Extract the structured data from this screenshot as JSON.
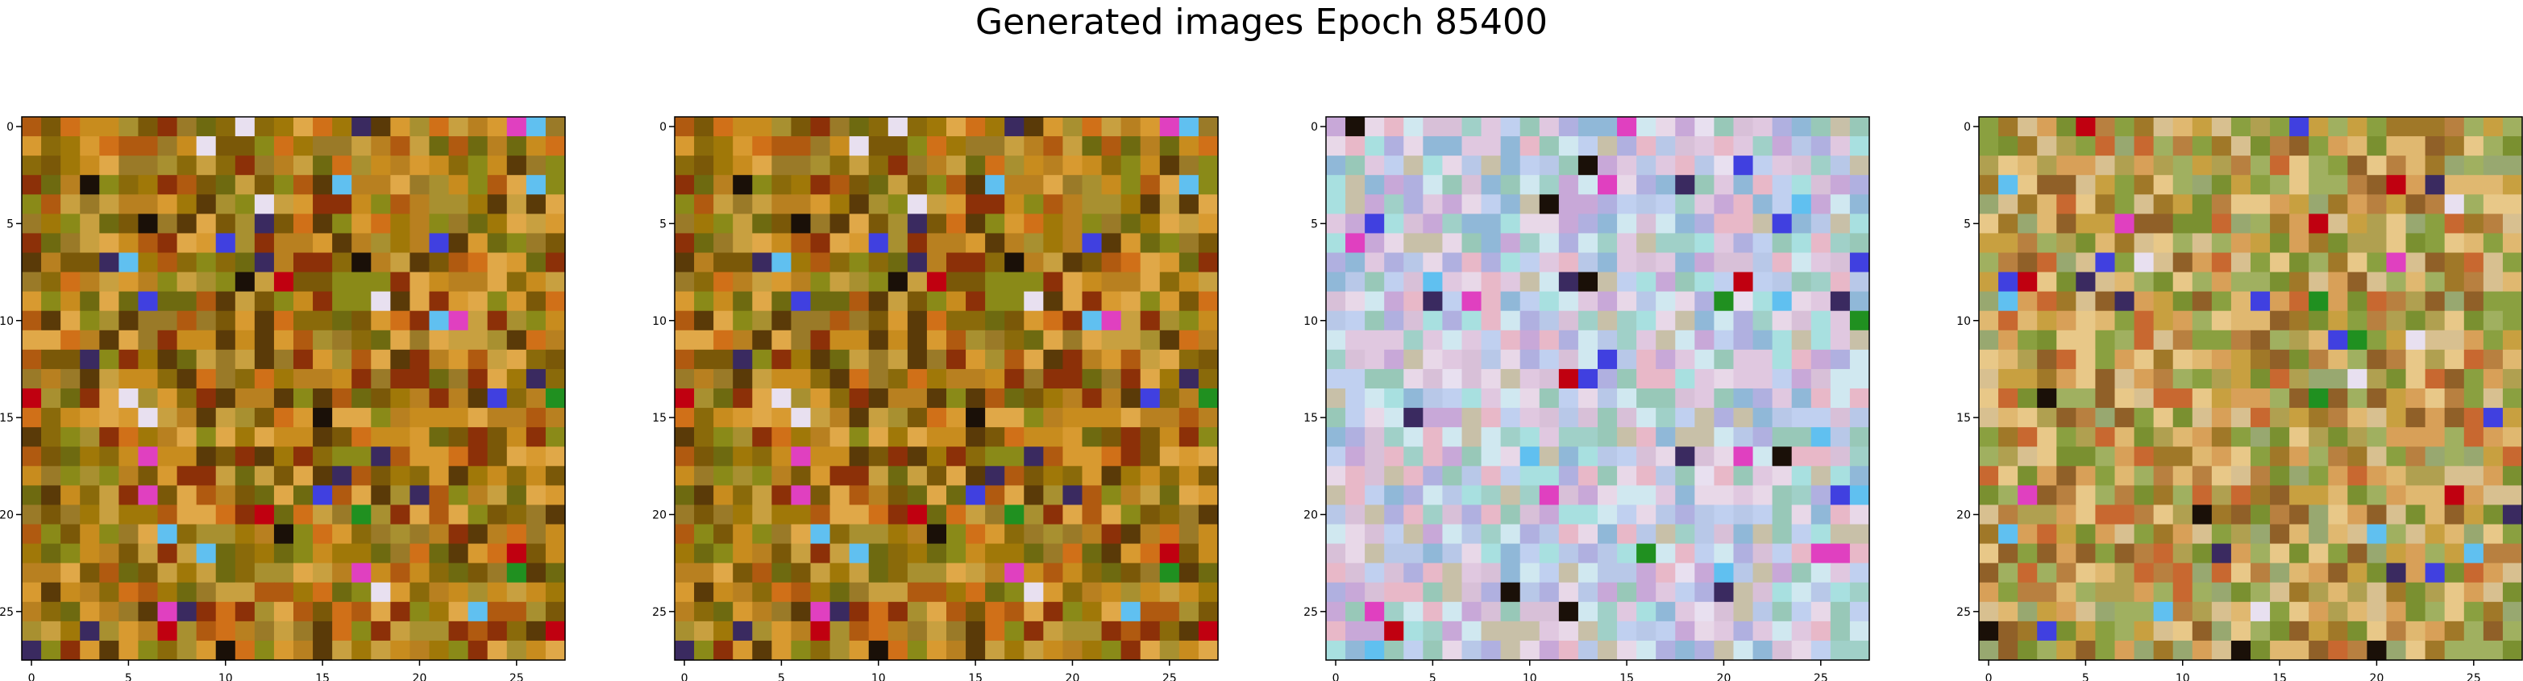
{
  "chart_data": {
    "type": "heatmap",
    "title": "Generated images Epoch 85400",
    "panels": [
      {
        "seed": 11,
        "palette": "warm"
      },
      {
        "seed": 11,
        "palette": "warm"
      },
      {
        "seed": 37,
        "palette": "pastel"
      },
      {
        "seed": 53,
        "palette": "mixed"
      }
    ],
    "image_shape": [
      28,
      28
    ],
    "xlim": [
      -0.5,
      27.5
    ],
    "ylim": [
      27.5,
      -0.5
    ],
    "xticks": [
      0,
      5,
      10,
      15,
      20,
      25
    ],
    "yticks": [
      0,
      5,
      10,
      15,
      20,
      25
    ],
    "xlabel": "",
    "ylabel": "",
    "grid": false,
    "colors": {
      "warm": [
        "#a07808",
        "#c88c1e",
        "#8a6a0a",
        "#b05a10",
        "#d89a30",
        "#7a5808",
        "#9a7a28",
        "#c8a040",
        "#8c3008",
        "#b88020",
        "#6e6a10",
        "#d07018",
        "#a89030",
        "#5a3a08",
        "#e0a848",
        "#8a8a18"
      ],
      "pastel": [
        "#b8c8e8",
        "#d8c0d8",
        "#a8e0e0",
        "#c8a8d8",
        "#e8d8e8",
        "#98c8b8",
        "#c0d0f0",
        "#e8b8c8",
        "#b0b0e0",
        "#d0e8f0",
        "#a0d0c8",
        "#c8c0a8",
        "#e0c8e0",
        "#90b8d8"
      ],
      "mixed": [
        "#c8a040",
        "#a07828",
        "#d8a058",
        "#8aa040",
        "#b88040",
        "#e0b870",
        "#7a9030",
        "#c86830",
        "#a0b060",
        "#d8c090",
        "#906028",
        "#b0a050",
        "#e8c888",
        "#98a870"
      ],
      "accents": [
        "#1a1008",
        "#3a2a60",
        "#e8e0f0",
        "#c00010",
        "#4040e0",
        "#60c0f0",
        "#e040c0",
        "#209020"
      ]
    }
  }
}
